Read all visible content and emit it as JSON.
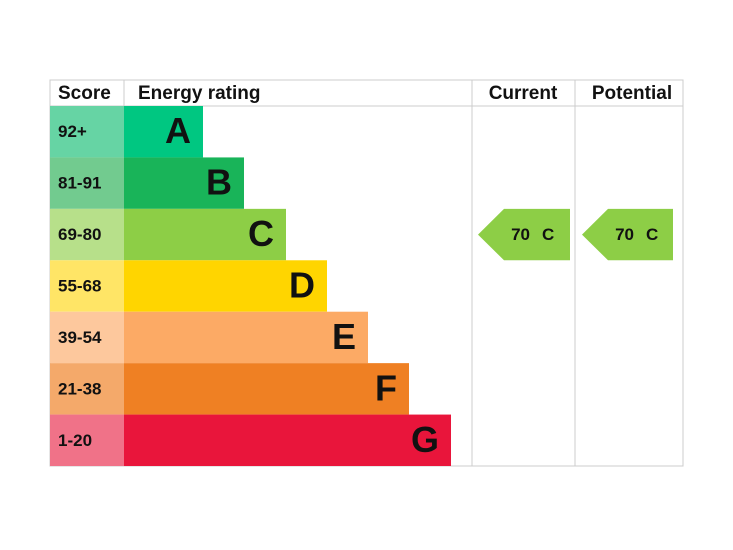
{
  "header": {
    "score": "Score",
    "rating": "Energy rating",
    "current": "Current",
    "potential": "Potential"
  },
  "rows": [
    {
      "score": "92+",
      "band": "A",
      "color": "#00c781",
      "light": "#66d4a4"
    },
    {
      "score": "81-91",
      "band": "B",
      "color": "#19b459",
      "light": "#72cb8f"
    },
    {
      "score": "69-80",
      "band": "C",
      "color": "#8dce46",
      "light": "#b7e08a"
    },
    {
      "score": "55-68",
      "band": "D",
      "color": "#ffd500",
      "light": "#ffe566"
    },
    {
      "score": "39-54",
      "band": "E",
      "color": "#fcaa65",
      "light": "#fdc89d"
    },
    {
      "score": "21-38",
      "band": "F",
      "color": "#ef8023",
      "light": "#f4a96a"
    },
    {
      "score": "1-20",
      "band": "G",
      "color": "#e9153b",
      "light": "#f07288"
    }
  ],
  "current": {
    "score": 70,
    "band": "C"
  },
  "potential": {
    "score": 70,
    "band": "C"
  }
}
